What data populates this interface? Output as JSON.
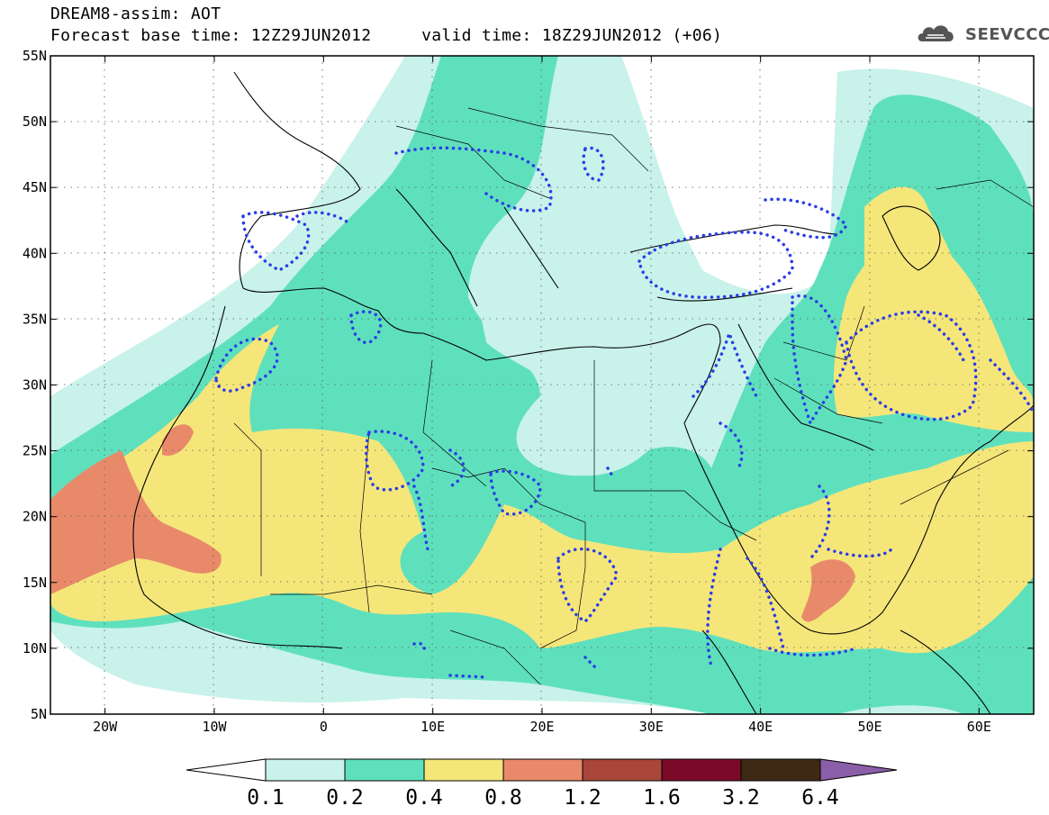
{
  "header": {
    "line1": "DREAM8-assim: AOT",
    "line2": "Forecast base time: 12Z29JUN2012     valid time: 18Z29JUN2012 (+06)"
  },
  "logo": {
    "text": "SEEVCCC",
    "icon": "cloud-icon"
  },
  "axes": {
    "lat_labels": [
      "55N",
      "50N",
      "45N",
      "40N",
      "35N",
      "30N",
      "25N",
      "20N",
      "15N",
      "10N",
      "5N"
    ],
    "lon_labels": [
      "20W",
      "10W",
      "0",
      "10E",
      "20E",
      "30E",
      "40E",
      "50E",
      "60E"
    ],
    "lon_range": [
      -25,
      65
    ],
    "lat_range": [
      5,
      55
    ]
  },
  "colorbar": {
    "labels": [
      "0.1",
      "0.2",
      "0.4",
      "0.8",
      "1.2",
      "1.6",
      "3.2",
      "6.4"
    ],
    "colors": [
      "#ffffff",
      "#c8f2ea",
      "#5fe0bd",
      "#f5e67a",
      "#e88a6a",
      "#a8463a",
      "#7a0a28",
      "#3e2a14",
      "#8a5ea8"
    ]
  }
}
